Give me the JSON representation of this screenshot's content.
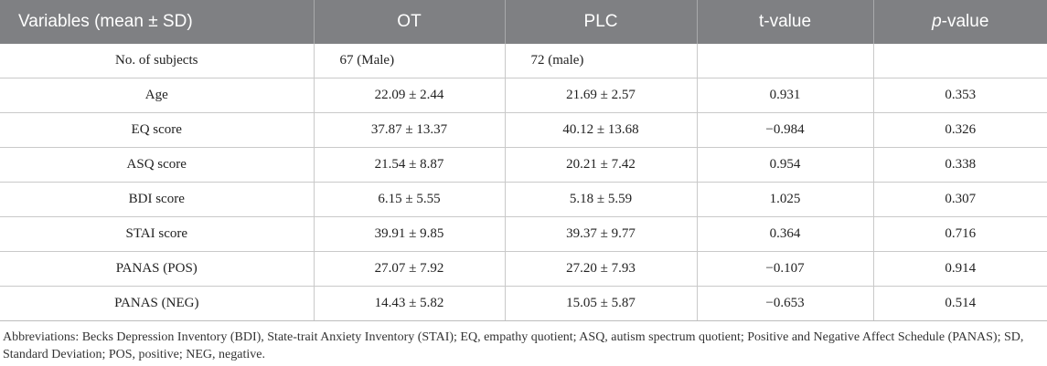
{
  "table": {
    "headers": {
      "variables": "Variables (mean ± SD)",
      "ot": "OT",
      "plc": "PLC",
      "t": "t-value",
      "p_italic": "p",
      "p_rest": "-value"
    },
    "rows": [
      {
        "variable": "No. of subjects",
        "ot": "67 (Male)",
        "plc": "72 (male)",
        "t": "",
        "p": ""
      },
      {
        "variable": "Age",
        "ot": "22.09 ± 2.44",
        "plc": "21.69 ± 2.57",
        "t": "0.931",
        "p": "0.353"
      },
      {
        "variable": "EQ score",
        "ot": "37.87 ± 13.37",
        "plc": "40.12 ± 13.68",
        "t": "−0.984",
        "p": "0.326"
      },
      {
        "variable": "ASQ score",
        "ot": "21.54 ± 8.87",
        "plc": "20.21 ± 7.42",
        "t": "0.954",
        "p": "0.338"
      },
      {
        "variable": "BDI score",
        "ot": "6.15 ± 5.55",
        "plc": "5.18 ± 5.59",
        "t": "1.025",
        "p": "0.307"
      },
      {
        "variable": "STAI score",
        "ot": "39.91 ± 9.85",
        "plc": "39.37 ± 9.77",
        "t": "0.364",
        "p": "0.716"
      },
      {
        "variable": "PANAS (POS)",
        "ot": "27.07 ± 7.92",
        "plc": "27.20 ± 7.93",
        "t": "−0.107",
        "p": "0.914"
      },
      {
        "variable": "PANAS (NEG)",
        "ot": "14.43 ± 5.82",
        "plc": "15.05 ± 5.87",
        "t": "−0.653",
        "p": "0.514"
      }
    ]
  },
  "footnote": "Abbreviations: Becks Depression Inventory (BDI), State-trait Anxiety Inventory (STAI); EQ, empathy quotient; ASQ, autism spectrum quotient; Positive and Negative Affect Schedule (PANAS); SD, Standard Deviation; POS, positive; NEG, negative."
}
